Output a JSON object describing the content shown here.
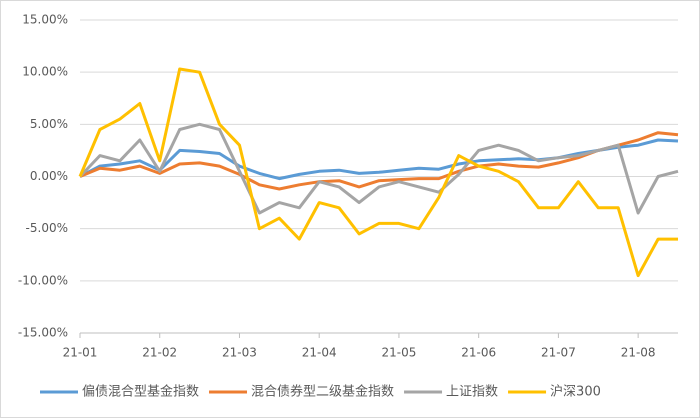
{
  "chart_data": {
    "type": "line",
    "categories": [
      "21-01",
      null,
      null,
      null,
      "21-02",
      null,
      null,
      null,
      "21-03",
      null,
      null,
      null,
      "21-04",
      null,
      null,
      null,
      "21-05",
      null,
      null,
      null,
      "21-06",
      null,
      null,
      null,
      "21-07",
      null,
      null,
      null,
      "21-08",
      null,
      null
    ],
    "series": [
      {
        "name": "偏债混合型基金指数",
        "color": "#5b9bd5",
        "values": [
          0,
          1.0,
          1.2,
          1.5,
          0.6,
          2.5,
          2.4,
          2.2,
          1.0,
          0.3,
          -0.2,
          0.2,
          0.5,
          0.6,
          0.3,
          0.4,
          0.6,
          0.8,
          0.7,
          1.2,
          1.5,
          1.6,
          1.7,
          1.6,
          1.8,
          2.2,
          2.5,
          2.8,
          3.0,
          3.5,
          3.4
        ]
      },
      {
        "name": "混合债券型二级基金指数",
        "color": "#ed7d31",
        "values": [
          0,
          0.8,
          0.6,
          1.0,
          0.3,
          1.2,
          1.3,
          1.0,
          0.2,
          -0.8,
          -1.2,
          -0.8,
          -0.5,
          -0.4,
          -1.0,
          -0.4,
          -0.3,
          -0.2,
          -0.2,
          0.5,
          1.0,
          1.2,
          1.0,
          0.9,
          1.3,
          1.8,
          2.5,
          3.0,
          3.5,
          4.2,
          4.0
        ]
      },
      {
        "name": "上证指数",
        "color": "#a5a5a5",
        "values": [
          0,
          2.0,
          1.5,
          3.5,
          0.5,
          4.5,
          5.0,
          4.5,
          0.5,
          -3.5,
          -2.5,
          -3.0,
          -0.5,
          -1.0,
          -2.5,
          -1.0,
          -0.5,
          -1.0,
          -1.5,
          0.2,
          2.5,
          3.0,
          2.5,
          1.5,
          1.8,
          2.0,
          2.5,
          3.0,
          -3.5,
          0.0,
          0.5
        ]
      },
      {
        "name": "沪深300",
        "color": "#ffc000",
        "values": [
          0,
          4.5,
          5.5,
          7.0,
          1.5,
          10.3,
          10.0,
          5.0,
          3.0,
          -5.0,
          -4.0,
          -6.0,
          -2.5,
          -3.0,
          -5.5,
          -4.5,
          -4.5,
          -5.0,
          -2.0,
          2.0,
          1.0,
          0.5,
          -0.5,
          -3.0,
          -3.0,
          -0.5,
          -3.0,
          -3.0,
          -9.5,
          -6.0,
          -6.0
        ]
      }
    ],
    "ylim": [
      -15,
      15
    ],
    "yticks": [
      {
        "value": -15,
        "label": "-15.00%"
      },
      {
        "value": -10,
        "label": "-10.00%"
      },
      {
        "value": -5,
        "label": "-5.00%"
      },
      {
        "value": 0,
        "label": "0.00%"
      },
      {
        "value": 5,
        "label": "5.00%"
      },
      {
        "value": 10,
        "label": "10.00%"
      },
      {
        "value": 15,
        "label": "15.00%"
      }
    ],
    "grid": true
  }
}
